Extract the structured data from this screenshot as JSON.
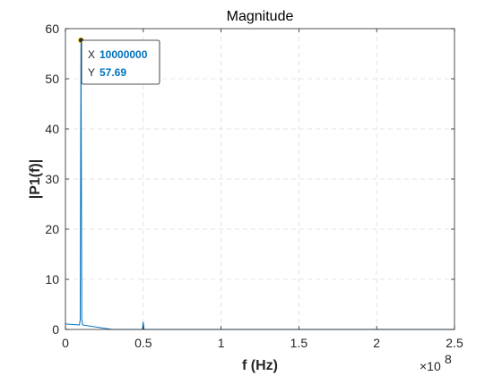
{
  "chart_data": {
    "type": "line",
    "title": "Magnitude",
    "xlabel": "f (Hz)",
    "ylabel": "|P1(f)|",
    "x_exponent_label": "×10",
    "x_exponent_power": "8",
    "xlim": [
      0,
      250000000
    ],
    "ylim": [
      0,
      60
    ],
    "xticks": [
      0,
      50000000,
      100000000,
      150000000,
      200000000,
      250000000
    ],
    "xtick_labels": [
      "0",
      "0.5",
      "1",
      "1.5",
      "2",
      "2.5"
    ],
    "yticks": [
      0,
      10,
      20,
      30,
      40,
      50,
      60
    ],
    "ytick_labels": [
      "0",
      "10",
      "20",
      "30",
      "40",
      "50",
      "60"
    ],
    "grid": true,
    "series": [
      {
        "color": "#0072BD",
        "x": [
          0,
          9000000,
          9500000,
          10000000,
          10500000,
          11000000,
          30000000,
          49500000,
          50000000,
          50500000,
          52000000,
          250000000
        ],
        "y": [
          1.1,
          0.9,
          2,
          57.69,
          2,
          0.9,
          0,
          0,
          1.5,
          0,
          0,
          0
        ]
      }
    ],
    "datatip": {
      "x_label": "X",
      "x_value": "10000000",
      "y_label": "Y",
      "y_value": "57.69",
      "point_x": 10000000,
      "point_y": 57.69,
      "value_color": "#0072BD"
    }
  }
}
